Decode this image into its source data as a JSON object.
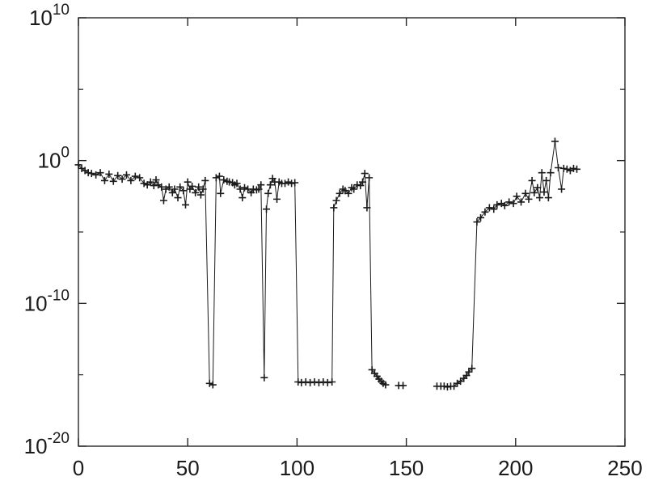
{
  "figure": {
    "background_color": "#ffffff",
    "axes_color": "#262626",
    "line_color": "#1a1a1a",
    "tick_label_color": "#1a1a1a"
  },
  "chart_data": {
    "type": "line",
    "title": "",
    "xlabel": "",
    "ylabel": "",
    "legend": null,
    "grid": false,
    "marker": "+",
    "x_scale": "linear",
    "y_scale": "log",
    "xlim": [
      0,
      250
    ],
    "ylim_log10": [
      -20,
      10
    ],
    "x_ticks": [
      0,
      50,
      100,
      150,
      200,
      250
    ],
    "x_tick_labels": [
      "0",
      "50",
      "100",
      "150",
      "200",
      "250"
    ],
    "y_major_tick_exponents": [
      "10",
      "0",
      "-10",
      "-20"
    ],
    "y_minor_tick_exponents": [
      "5",
      "-5",
      "-15"
    ],
    "y_tick_base": "10",
    "series_name": "values",
    "segments_x_log10y": [
      [
        [
          0,
          -0.3
        ],
        [
          1.5,
          -0.55
        ],
        [
          3,
          -0.7
        ],
        [
          4.5,
          -0.85
        ],
        [
          6,
          -0.9
        ],
        [
          8,
          -1.0
        ],
        [
          10,
          -0.85
        ],
        [
          12,
          -1.4
        ],
        [
          14,
          -0.95
        ],
        [
          16,
          -1.45
        ],
        [
          18,
          -1.05
        ],
        [
          20,
          -1.3
        ],
        [
          22,
          -1.0
        ],
        [
          24,
          -1.4
        ],
        [
          26,
          -1.1
        ],
        [
          28,
          -1.2
        ],
        [
          30,
          -1.6
        ],
        [
          31.5,
          -1.7
        ],
        [
          33,
          -1.5
        ],
        [
          34.5,
          -1.75
        ],
        [
          35.5,
          -1.35
        ],
        [
          36.5,
          -1.7
        ],
        [
          38,
          -1.85
        ],
        [
          39,
          -2.8
        ],
        [
          40,
          -2.0
        ],
        [
          41.5,
          -1.85
        ],
        [
          43,
          -2.25
        ],
        [
          44,
          -2.0
        ],
        [
          45.5,
          -2.6
        ],
        [
          46.5,
          -1.85
        ],
        [
          48,
          -2.1
        ],
        [
          49,
          -3.1
        ],
        [
          50,
          -1.5
        ],
        [
          51,
          -2.0
        ],
        [
          52,
          -1.8
        ],
        [
          53.5,
          -2.25
        ],
        [
          55,
          -1.85
        ],
        [
          56,
          -2.4
        ],
        [
          57,
          -2.0
        ],
        [
          58,
          -1.4
        ],
        [
          60,
          -15.6
        ],
        [
          61.5,
          -15.7
        ],
        [
          63,
          -1.2
        ],
        [
          64.5,
          -1.1
        ],
        [
          65,
          -2.3
        ],
        [
          66.5,
          -1.35
        ],
        [
          68,
          -1.45
        ],
        [
          69,
          -1.5
        ],
        [
          70.5,
          -1.55
        ],
        [
          71.5,
          -1.7
        ],
        [
          72.5,
          -1.6
        ],
        [
          74,
          -2.0
        ],
        [
          75,
          -2.6
        ],
        [
          76,
          -1.9
        ],
        [
          77.5,
          -2.0
        ],
        [
          79,
          -2.25
        ],
        [
          80,
          -2.0
        ],
        [
          81.5,
          -2.05
        ],
        [
          82.5,
          -2.0
        ],
        [
          83.5,
          -1.7
        ],
        [
          85,
          -15.2
        ],
        [
          86,
          -3.4
        ],
        [
          86.8,
          -2.3
        ],
        [
          87.8,
          -1.7
        ],
        [
          88.8,
          -1.25
        ],
        [
          89.8,
          -1.5
        ],
        [
          90.8,
          -2.7
        ],
        [
          91.8,
          -1.5
        ],
        [
          93,
          -1.6
        ],
        [
          94.5,
          -1.6
        ],
        [
          96,
          -1.5
        ],
        [
          97.5,
          -1.6
        ],
        [
          99,
          -1.55
        ],
        [
          100.5,
          -15.5
        ],
        [
          102,
          -15.55
        ],
        [
          104,
          -15.5
        ],
        [
          106,
          -15.55
        ],
        [
          108,
          -15.5
        ],
        [
          110,
          -15.55
        ],
        [
          112,
          -15.5
        ],
        [
          114,
          -15.55
        ],
        [
          116,
          -15.5
        ],
        [
          116.8,
          -3.3
        ],
        [
          118,
          -2.8
        ],
        [
          119.5,
          -2.3
        ],
        [
          121,
          -2.0
        ],
        [
          122,
          -2.1
        ],
        [
          123.5,
          -2.3
        ],
        [
          125,
          -1.9
        ],
        [
          126,
          -2.0
        ],
        [
          127.5,
          -1.7
        ],
        [
          129,
          -1.75
        ],
        [
          130,
          -1.5
        ],
        [
          131,
          -0.9
        ],
        [
          132,
          -3.3
        ],
        [
          133,
          -1.2
        ],
        [
          134.3,
          -14.65
        ],
        [
          135.5,
          -14.9
        ],
        [
          136.6,
          -15.1
        ],
        [
          137.5,
          -15.3
        ],
        [
          138.5,
          -15.45
        ],
        [
          139.4,
          -15.6
        ],
        [
          140.5,
          -15.7
        ]
      ],
      [
        [
          146.5,
          -15.75
        ],
        [
          148.5,
          -15.75
        ]
      ],
      [
        [
          164,
          -15.8
        ],
        [
          165.8,
          -15.8
        ],
        [
          167.3,
          -15.8
        ],
        [
          168.8,
          -15.85
        ],
        [
          170.3,
          -15.8
        ],
        [
          171.8,
          -15.8
        ],
        [
          173.3,
          -15.6
        ],
        [
          174.8,
          -15.45
        ],
        [
          176.3,
          -15.25
        ],
        [
          177.5,
          -15.05
        ],
        [
          178.6,
          -14.8
        ],
        [
          180,
          -14.55
        ],
        [
          182.3,
          -4.3
        ],
        [
          184,
          -4.0
        ],
        [
          186,
          -3.6
        ],
        [
          188,
          -3.3
        ],
        [
          190,
          -3.4
        ],
        [
          191.5,
          -3.1
        ],
        [
          193.5,
          -3.0
        ],
        [
          195,
          -3.15
        ],
        [
          197,
          -2.9
        ],
        [
          199,
          -3.0
        ],
        [
          200.5,
          -2.5
        ],
        [
          202.5,
          -2.9
        ],
        [
          204.5,
          -2.3
        ],
        [
          206,
          -2.7
        ],
        [
          207.5,
          -1.4
        ],
        [
          208.5,
          -2.25
        ],
        [
          210,
          -1.9
        ],
        [
          211,
          -2.6
        ],
        [
          212,
          -0.85
        ],
        [
          213,
          -2.2
        ],
        [
          214,
          -1.4
        ],
        [
          215,
          -2.6
        ],
        [
          216,
          -0.85
        ],
        [
          218,
          1.35
        ],
        [
          219.5,
          -0.5
        ],
        [
          221,
          -2.0
        ],
        [
          222,
          -0.55
        ],
        [
          223.5,
          -0.6
        ],
        [
          225,
          -0.7
        ],
        [
          226.5,
          -0.55
        ],
        [
          228,
          -0.6
        ]
      ]
    ]
  }
}
